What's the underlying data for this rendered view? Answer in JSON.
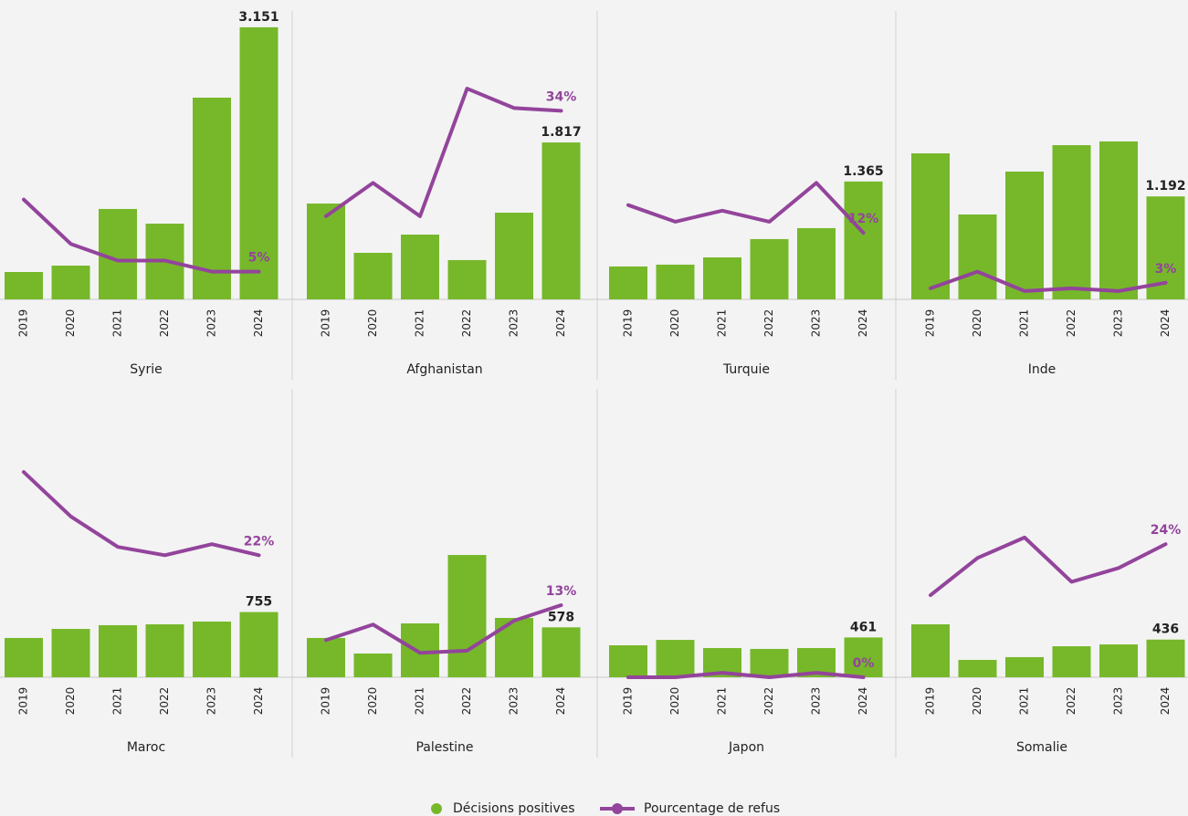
{
  "legend": [
    {
      "name": "Décisions positives",
      "color": "#76b82a"
    },
    {
      "name": "Pourcentage de refus",
      "color": "#93449b"
    }
  ],
  "chart_data": [
    {
      "type": "bar",
      "title": "Syrie",
      "categories": [
        "2019",
        "2020",
        "2021",
        "2022",
        "2023",
        "2024"
      ],
      "ylim": [
        0,
        3340
      ],
      "y2lim": [
        0,
        52
      ],
      "series": [
        {
          "values": [
            317,
            391,
            1047,
            877,
            2336,
            3151
          ],
          "value_labels": [
            null,
            null,
            null,
            null,
            null,
            "3.151"
          ]
        },
        {
          "axis": "y2",
          "values": [
            18,
            10,
            7,
            7,
            5,
            5
          ],
          "value_labels": [
            null,
            null,
            null,
            null,
            null,
            "5%"
          ]
        }
      ]
    },
    {
      "type": "bar",
      "title": "Afghanistan",
      "categories": [
        "2019",
        "2020",
        "2021",
        "2022",
        "2023",
        "2024"
      ],
      "ylim": [
        0,
        3340
      ],
      "y2lim": [
        0,
        52
      ],
      "series": [
        {
          "values": [
            1110,
            539,
            750,
            455,
            1004,
            1817
          ],
          "value_labels": [
            null,
            null,
            null,
            null,
            null,
            "1.817"
          ]
        },
        {
          "axis": "y2",
          "values": [
            15,
            21,
            15,
            38,
            34.5,
            34
          ],
          "value_labels": [
            null,
            null,
            null,
            null,
            null,
            "34%"
          ]
        }
      ]
    },
    {
      "type": "bar",
      "title": "Turquie",
      "categories": [
        "2019",
        "2020",
        "2021",
        "2022",
        "2023",
        "2024"
      ],
      "ylim": [
        0,
        3340
      ],
      "y2lim": [
        0,
        52
      ],
      "series": [
        {
          "values": [
            381,
            402,
            486,
            698,
            825,
            1365
          ],
          "value_labels": [
            null,
            null,
            null,
            null,
            null,
            "1.365"
          ]
        },
        {
          "axis": "y2",
          "values": [
            17,
            14,
            16,
            14,
            21,
            12
          ],
          "value_labels": [
            null,
            null,
            null,
            null,
            null,
            "12%"
          ]
        }
      ]
    },
    {
      "type": "bar",
      "title": "Inde",
      "categories": [
        "2019",
        "2020",
        "2021",
        "2022",
        "2023",
        "2024"
      ],
      "ylim": [
        0,
        3340
      ],
      "y2lim": [
        0,
        52
      ],
      "series": [
        {
          "values": [
            1691,
            983,
            1480,
            1786,
            1829,
            1192
          ],
          "value_labels": [
            null,
            null,
            null,
            null,
            null,
            "1.192"
          ]
        },
        {
          "axis": "y2",
          "values": [
            2,
            5,
            1.5,
            2,
            1.5,
            3
          ],
          "value_labels": [
            null,
            null,
            null,
            null,
            null,
            "3%"
          ]
        }
      ]
    },
    {
      "type": "bar",
      "title": "Maroc",
      "categories": [
        "2019",
        "2020",
        "2021",
        "2022",
        "2023",
        "2024"
      ],
      "ylim": [
        0,
        3340
      ],
      "y2lim": [
        0,
        52
      ],
      "series": [
        {
          "values": [
            455,
            560,
            603,
            613,
            645,
            755
          ],
          "value_labels": [
            null,
            null,
            null,
            null,
            null,
            "755"
          ]
        },
        {
          "axis": "y2",
          "values": [
            37,
            29,
            23.5,
            22,
            24,
            22
          ],
          "value_labels": [
            null,
            null,
            null,
            null,
            null,
            "22%"
          ]
        }
      ]
    },
    {
      "type": "bar",
      "title": "Palestine",
      "categories": [
        "2019",
        "2020",
        "2021",
        "2022",
        "2023",
        "2024"
      ],
      "ylim": [
        0,
        3340
      ],
      "y2lim": [
        0,
        52
      ],
      "series": [
        {
          "values": [
            455,
            275,
            624,
            1416,
            687,
            578
          ],
          "value_labels": [
            null,
            null,
            null,
            null,
            null,
            "578"
          ]
        },
        {
          "axis": "y2",
          "values": [
            6.7,
            9.5,
            4.4,
            4.8,
            10.2,
            13
          ],
          "value_labels": [
            null,
            null,
            null,
            null,
            null,
            "13%"
          ]
        }
      ]
    },
    {
      "type": "bar",
      "title": "Japon",
      "categories": [
        "2019",
        "2020",
        "2021",
        "2022",
        "2023",
        "2024"
      ],
      "ylim": [
        0,
        3340
      ],
      "y2lim": [
        0,
        52
      ],
      "series": [
        {
          "values": [
            370,
            433,
            338,
            328,
            338,
            461
          ],
          "value_labels": [
            null,
            null,
            null,
            null,
            null,
            "461"
          ]
        },
        {
          "axis": "y2",
          "values": [
            0,
            0,
            0.8,
            0,
            0.8,
            0
          ],
          "value_labels": [
            null,
            null,
            null,
            null,
            null,
            "0%"
          ]
        }
      ]
    },
    {
      "type": "bar",
      "title": "Somalie",
      "categories": [
        "2019",
        "2020",
        "2021",
        "2022",
        "2023",
        "2024"
      ],
      "ylim": [
        0,
        3340
      ],
      "y2lim": [
        0,
        52
      ],
      "series": [
        {
          "values": [
            613,
            201,
            233,
            359,
            380,
            436
          ],
          "value_labels": [
            null,
            null,
            null,
            null,
            null,
            "436"
          ]
        },
        {
          "axis": "y2",
          "values": [
            14.8,
            21.5,
            25.2,
            17.2,
            19.7,
            24
          ],
          "value_labels": [
            null,
            null,
            null,
            null,
            null,
            "24%"
          ]
        }
      ]
    }
  ]
}
